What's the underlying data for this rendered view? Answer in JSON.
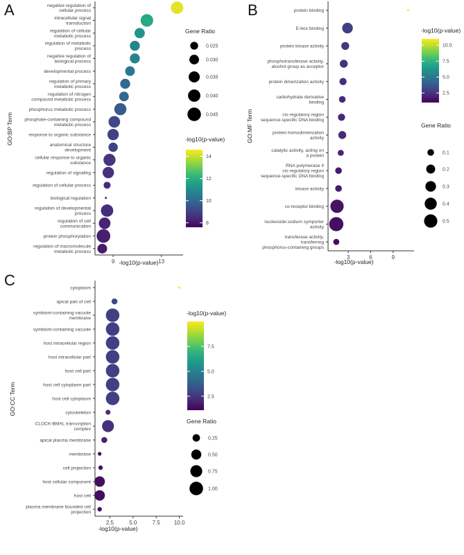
{
  "chart_data": [
    {
      "panel": "A",
      "type": "scatter",
      "xlabel": "-log10(p-value)",
      "ylabel": "GO:BP Term",
      "x_ticks": [
        9,
        13
      ],
      "xlim": [
        7.5,
        14.8
      ],
      "color_legend": {
        "title": "-log10(p-value)",
        "ticks": [
          8,
          10,
          12,
          14
        ],
        "range": [
          7.6,
          14.6
        ]
      },
      "size_legend": {
        "title": "Gene Ratio",
        "values": [
          0.025,
          0.03,
          0.035,
          0.04,
          0.045
        ],
        "labels": [
          "0.025",
          "0.030",
          "0.035",
          "0.040",
          "0.045"
        ],
        "range": [
          0.018,
          0.047
        ]
      },
      "terms": [
        {
          "label": [
            "negative regulation of",
            "cellular process"
          ],
          "x": 14.3,
          "ratio": 0.04
        },
        {
          "label": [
            "intracellular signal",
            "transduction"
          ],
          "x": 11.8,
          "ratio": 0.041
        },
        {
          "label": [
            "regulation of cellular",
            "metabolic process"
          ],
          "x": 11.2,
          "ratio": 0.032
        },
        {
          "label": [
            "regulation of metabolic",
            "process"
          ],
          "x": 10.8,
          "ratio": 0.031
        },
        {
          "label": [
            "negative regulation of",
            "biological process"
          ],
          "x": 10.8,
          "ratio": 0.031
        },
        {
          "label": [
            "developmental process"
          ],
          "x": 10.4,
          "ratio": 0.03
        },
        {
          "label": [
            "regulation of primary",
            "metabolic process"
          ],
          "x": 10.0,
          "ratio": 0.031
        },
        {
          "label": [
            "regulation of nitrogen",
            "compound metabolic process"
          ],
          "x": 9.9,
          "ratio": 0.03
        },
        {
          "label": [
            "phosphorus metabolic process"
          ],
          "x": 9.6,
          "ratio": 0.039
        },
        {
          "label": [
            "phosphate-containing compound",
            "metabolic process"
          ],
          "x": 9.1,
          "ratio": 0.037
        },
        {
          "label": [
            "response to organic substance"
          ],
          "x": 9.0,
          "ratio": 0.036
        },
        {
          "label": [
            "anatomical structure",
            "development"
          ],
          "x": 9.0,
          "ratio": 0.029
        },
        {
          "label": [
            "cellular response to organic",
            "substance"
          ],
          "x": 8.7,
          "ratio": 0.039
        },
        {
          "label": [
            "regulation of signaling"
          ],
          "x": 8.6,
          "ratio": 0.036
        },
        {
          "label": [
            "regulation of cellular process"
          ],
          "x": 8.5,
          "ratio": 0.023
        },
        {
          "label": [
            "biological regulation"
          ],
          "x": 8.4,
          "ratio": 0.018
        },
        {
          "label": [
            "regulation of developmental",
            "process"
          ],
          "x": 8.5,
          "ratio": 0.04
        },
        {
          "label": [
            "regulation of cell",
            "communication"
          ],
          "x": 8.3,
          "ratio": 0.037
        },
        {
          "label": [
            "protein phosphorylation"
          ],
          "x": 8.2,
          "ratio": 0.046
        },
        {
          "label": [
            "regulation of macromolecule",
            "metabolic process"
          ],
          "x": 8.1,
          "ratio": 0.03
        }
      ]
    },
    {
      "panel": "B",
      "type": "scatter",
      "xlabel": "-log10(p-value)",
      "ylabel": "GO:MF Term",
      "x_ticks": [
        3,
        6,
        9
      ],
      "xlim": [
        0.3,
        11.8
      ],
      "color_legend": {
        "title": "-log10(p-value)",
        "ticks": [
          2.5,
          5.0,
          7.5,
          10.0
        ],
        "labels": [
          "2.5",
          "5.0",
          "7.5",
          "10.0"
        ],
        "range": [
          1.0,
          11.0
        ]
      },
      "size_legend": {
        "title": "Gene Ratio",
        "values": [
          0.1,
          0.2,
          0.3,
          0.4,
          0.5
        ],
        "labels": [
          "0.1",
          "0.2",
          "0.3",
          "0.4",
          "0.5"
        ],
        "range": [
          0.02,
          0.55
        ]
      },
      "terms": [
        {
          "label": [
            "protein binding"
          ],
          "x": 11.0,
          "ratio": 0.02
        },
        {
          "label": [
            "E-box binding"
          ],
          "x": 2.9,
          "ratio": 0.3
        },
        {
          "label": [
            "protein kinase activity"
          ],
          "x": 2.6,
          "ratio": 0.15
        },
        {
          "label": [
            "phosphotransferase activity,",
            "alcohol group as acceptor"
          ],
          "x": 2.4,
          "ratio": 0.15
        },
        {
          "label": [
            "protein dimerization activity"
          ],
          "x": 2.3,
          "ratio": 0.12
        },
        {
          "label": [
            "carbohydrate derivative",
            "binding"
          ],
          "x": 2.2,
          "ratio": 0.1
        },
        {
          "label": [
            "cis-regulatory region",
            "sequence-specific DNA binding"
          ],
          "x": 2.1,
          "ratio": 0.12
        },
        {
          "label": [
            "protein homodimerization",
            "activity"
          ],
          "x": 2.2,
          "ratio": 0.15
        },
        {
          "label": [
            "catalytic activity, acting on",
            "a protein"
          ],
          "x": 2.0,
          "ratio": 0.08
        },
        {
          "label": [
            "RNA polymerase II",
            "cis-regulatory region",
            "sequence-specific DNA binding"
          ],
          "x": 1.7,
          "ratio": 0.1
        },
        {
          "label": [
            "kinase activity"
          ],
          "x": 1.7,
          "ratio": 0.1
        },
        {
          "label": [
            "co-receptor binding"
          ],
          "x": 1.5,
          "ratio": 0.5
        },
        {
          "label": [
            "nucleoside:sodium symporter",
            "activity"
          ],
          "x": 1.4,
          "ratio": 0.58
        },
        {
          "label": [
            "transferase activity,",
            "transferring",
            "phosphorus-containing groups"
          ],
          "x": 1.4,
          "ratio": 0.08
        }
      ]
    },
    {
      "panel": "C",
      "type": "scatter",
      "xlabel": "-log10(p-value)",
      "ylabel": "GO:CC Term",
      "x_ticks": [
        2.5,
        5.0,
        7.5,
        10.0
      ],
      "x_tick_labels": [
        "2.5",
        "5.0",
        "7.5",
        "10.0"
      ],
      "xlim": [
        0.9,
        10.4
      ],
      "color_legend": {
        "title": "-log10(p-value)",
        "ticks": [
          2.5,
          5.0,
          7.5
        ],
        "labels": [
          "2.5",
          "5.0",
          "7.5"
        ],
        "range": [
          1.1,
          10.0
        ]
      },
      "size_legend": {
        "title": "Gene Ratio",
        "values": [
          0.25,
          0.5,
          0.75,
          1.0
        ],
        "labels": [
          "0.25",
          "0.50",
          "0.75",
          "1.00"
        ],
        "range": [
          0.04,
          1.05
        ]
      },
      "terms": [
        {
          "label": [
            "cytoplasm"
          ],
          "x": 10.0,
          "ratio": 0.04
        },
        {
          "label": [
            "apical part of cell"
          ],
          "x": 3.0,
          "ratio": 0.15
        },
        {
          "label": [
            "symbiont-containing vacuole",
            "membrane"
          ],
          "x": 2.8,
          "ratio": 1.0
        },
        {
          "label": [
            "symbiont-containing vacuole"
          ],
          "x": 2.8,
          "ratio": 1.0
        },
        {
          "label": [
            "host intracellular region"
          ],
          "x": 2.8,
          "ratio": 1.0
        },
        {
          "label": [
            "host intracellular part"
          ],
          "x": 2.8,
          "ratio": 1.0
        },
        {
          "label": [
            "host cell part"
          ],
          "x": 2.8,
          "ratio": 1.0
        },
        {
          "label": [
            "host cell cytoplasm part"
          ],
          "x": 2.8,
          "ratio": 1.0
        },
        {
          "label": [
            "host cell cytoplasm"
          ],
          "x": 2.8,
          "ratio": 1.0
        },
        {
          "label": [
            "cytoskeleton"
          ],
          "x": 2.3,
          "ratio": 0.1
        },
        {
          "label": [
            "CLOCK-BMAL transcription",
            "complex"
          ],
          "x": 2.3,
          "ratio": 0.75
        },
        {
          "label": [
            "apical plasma membrane"
          ],
          "x": 1.9,
          "ratio": 0.15
        },
        {
          "label": [
            "membrane"
          ],
          "x": 1.4,
          "ratio": 0.06
        },
        {
          "label": [
            "cell projection"
          ],
          "x": 1.5,
          "ratio": 0.08
        },
        {
          "label": [
            "host cellular component"
          ],
          "x": 1.4,
          "ratio": 0.55
        },
        {
          "label": [
            "host cell"
          ],
          "x": 1.4,
          "ratio": 0.55
        },
        {
          "label": [
            "plasma membrane bounded cell",
            "projection"
          ],
          "x": 1.4,
          "ratio": 0.08
        }
      ]
    }
  ],
  "viridis": [
    "#440154",
    "#482878",
    "#3e4989",
    "#31688e",
    "#26828e",
    "#1f9e89",
    "#35b779",
    "#6ece58",
    "#b5de2b",
    "#fde725"
  ]
}
